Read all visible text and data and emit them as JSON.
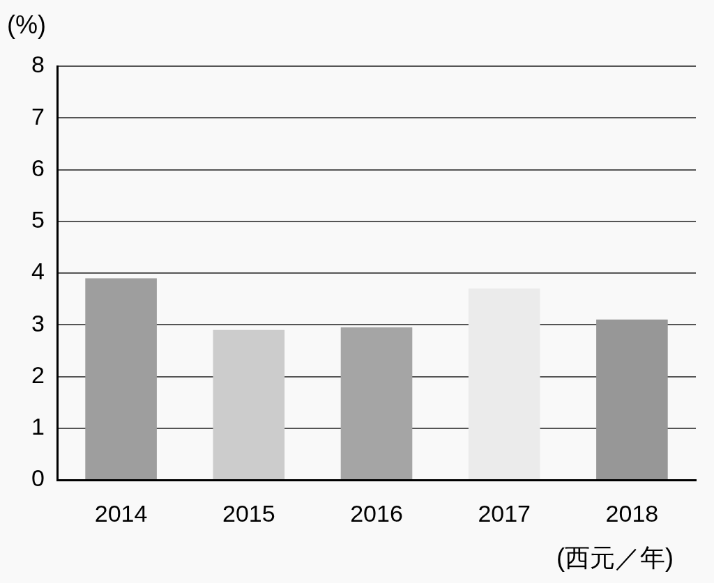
{
  "chart_data": {
    "type": "bar",
    "ylabel": "(%)",
    "xlabel": "(西元／年)",
    "categories": [
      "2014",
      "2015",
      "2016",
      "2017",
      "2018"
    ],
    "values": [
      3.9,
      2.9,
      2.95,
      3.7,
      3.1
    ],
    "colors": [
      "#9e9e9e",
      "#cccccc",
      "#a5a5a5",
      "#ebebeb",
      "#979797"
    ],
    "ylim": [
      0,
      8
    ],
    "yticks": [
      0,
      1,
      2,
      3,
      4,
      5,
      6,
      7,
      8
    ],
    "grid": "y"
  }
}
